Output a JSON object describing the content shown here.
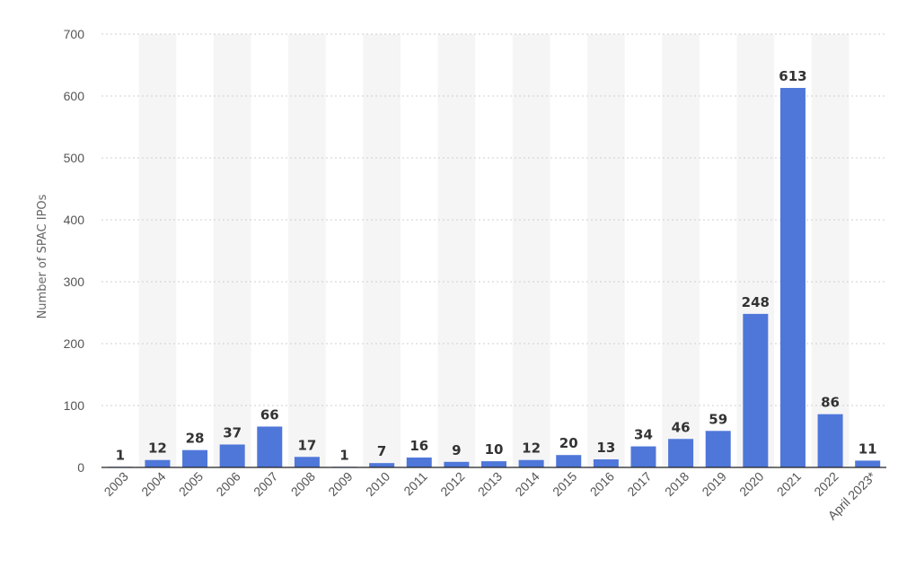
{
  "chart_data": {
    "type": "bar",
    "ylabel": "Number of SPAC IPOs",
    "ylim": [
      0,
      700
    ],
    "yticks": [
      0,
      100,
      200,
      300,
      400,
      500,
      600,
      700
    ],
    "grid": true,
    "bar_color": "#4f77d9",
    "band_color": "#f5f5f5",
    "categories": [
      "2003",
      "2004",
      "2005",
      "2006",
      "2007",
      "2008",
      "2009",
      "2010",
      "2011",
      "2012",
      "2013",
      "2014",
      "2015",
      "2016",
      "2017",
      "2018",
      "2019",
      "2020",
      "2021",
      "2022",
      "April 2023*"
    ],
    "values": [
      1,
      12,
      28,
      37,
      66,
      17,
      1,
      7,
      16,
      9,
      10,
      12,
      20,
      13,
      34,
      46,
      59,
      248,
      613,
      86,
      11
    ]
  }
}
